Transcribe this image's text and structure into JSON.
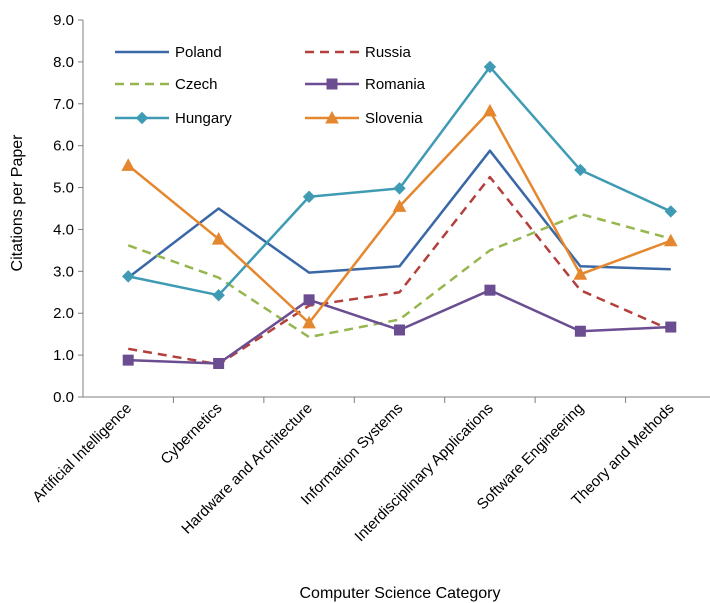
{
  "chart_data": {
    "type": "line",
    "title": "",
    "xlabel": "Computer Science Category",
    "ylabel": "Citations per Paper",
    "ylim": [
      0,
      9
    ],
    "yticks": [
      "0.0",
      "1.0",
      "2.0",
      "3.0",
      "4.0",
      "5.0",
      "6.0",
      "7.0",
      "8.0",
      "9.0"
    ],
    "grid": false,
    "legend_position": "top-left, inside plot, two columns",
    "categories": [
      "Artificial Intelligence",
      "Cybernetics",
      "Hardware and Architecture",
      "Information Systems",
      "Interdisciplinary Applications",
      "Software Engineering",
      "Theory and Methods"
    ],
    "series": [
      {
        "name": "Poland",
        "color": "#3a68a6",
        "dash": "solid",
        "marker": "none",
        "values": [
          2.85,
          4.5,
          2.97,
          3.12,
          5.88,
          3.12,
          3.05
        ]
      },
      {
        "name": "Russia",
        "color": "#b3403c",
        "dash": "dashed",
        "marker": "none",
        "values": [
          1.15,
          0.78,
          2.18,
          2.5,
          5.25,
          2.55,
          1.6
        ]
      },
      {
        "name": "Czech",
        "color": "#96b64e",
        "dash": "dashed",
        "marker": "none",
        "values": [
          3.62,
          2.85,
          1.43,
          1.85,
          3.5,
          4.37,
          3.78
        ]
      },
      {
        "name": "Romania",
        "color": "#6b4d91",
        "dash": "solid",
        "marker": "square",
        "values": [
          0.88,
          0.8,
          2.32,
          1.6,
          2.55,
          1.57,
          1.67
        ]
      },
      {
        "name": "Hungary",
        "color": "#3f9bb4",
        "dash": "solid",
        "marker": "diamond",
        "values": [
          2.88,
          2.43,
          4.78,
          4.98,
          7.88,
          5.42,
          4.43
        ]
      },
      {
        "name": "Slovenia",
        "color": "#e5872f",
        "dash": "solid",
        "marker": "triangle",
        "values": [
          5.53,
          3.77,
          1.77,
          4.55,
          6.83,
          2.93,
          3.73
        ]
      }
    ]
  }
}
